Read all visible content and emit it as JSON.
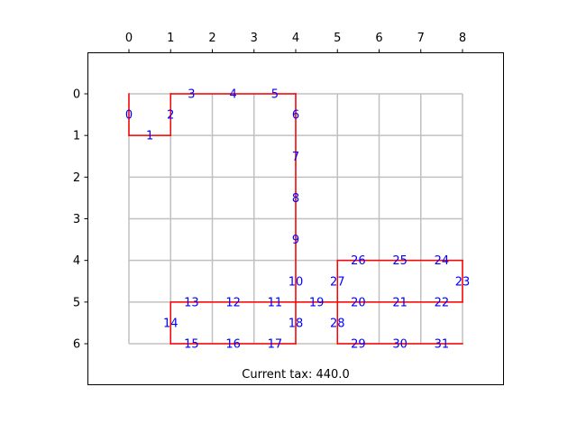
{
  "chart_data": {
    "type": "grid-path",
    "x_ticks": [
      "0",
      "1",
      "2",
      "3",
      "4",
      "5",
      "6",
      "7",
      "8"
    ],
    "y_ticks": [
      "0",
      "1",
      "2",
      "3",
      "4",
      "5",
      "6"
    ],
    "xlim": [
      -1,
      9
    ],
    "ylim": [
      7,
      -1
    ],
    "grid_size": {
      "cols": 9,
      "rows": 7
    },
    "x_axis_position": "top",
    "y_axis_inverted": true,
    "colors": {
      "grid": "#c0c0c0",
      "path": "#ff0000",
      "edge_label": "#0000ff",
      "frame": "#000000"
    },
    "path_segments": [
      [
        [
          0,
          0
        ],
        [
          0,
          1
        ]
      ],
      [
        [
          0,
          1
        ],
        [
          1,
          1
        ]
      ],
      [
        [
          1,
          1
        ],
        [
          1,
          0
        ]
      ],
      [
        [
          1,
          0
        ],
        [
          4,
          0
        ]
      ],
      [
        [
          4,
          0
        ],
        [
          4,
          6
        ]
      ],
      [
        [
          4,
          5
        ],
        [
          1,
          5
        ]
      ],
      [
        [
          1,
          5
        ],
        [
          1,
          6
        ]
      ],
      [
        [
          1,
          6
        ],
        [
          4,
          6
        ]
      ],
      [
        [
          4,
          5
        ],
        [
          8,
          5
        ]
      ],
      [
        [
          5,
          4
        ],
        [
          8,
          4
        ]
      ],
      [
        [
          8,
          4
        ],
        [
          8,
          5
        ]
      ],
      [
        [
          5,
          4
        ],
        [
          5,
          6
        ]
      ],
      [
        [
          5,
          6
        ],
        [
          8,
          6
        ]
      ]
    ],
    "edge_labels": [
      {
        "text": "0",
        "x": 0,
        "y": 0.5
      },
      {
        "text": "1",
        "x": 0.5,
        "y": 1
      },
      {
        "text": "2",
        "x": 1,
        "y": 0.5
      },
      {
        "text": "3",
        "x": 1.5,
        "y": 0
      },
      {
        "text": "4",
        "x": 2.5,
        "y": 0
      },
      {
        "text": "5",
        "x": 3.5,
        "y": 0
      },
      {
        "text": "6",
        "x": 4,
        "y": 0.5
      },
      {
        "text": "7",
        "x": 4,
        "y": 1.5
      },
      {
        "text": "8",
        "x": 4,
        "y": 2.5
      },
      {
        "text": "9",
        "x": 4,
        "y": 3.5
      },
      {
        "text": "10",
        "x": 4,
        "y": 4.5
      },
      {
        "text": "11",
        "x": 3.5,
        "y": 5
      },
      {
        "text": "12",
        "x": 2.5,
        "y": 5
      },
      {
        "text": "13",
        "x": 1.5,
        "y": 5
      },
      {
        "text": "14",
        "x": 1,
        "y": 5.5
      },
      {
        "text": "15",
        "x": 1.5,
        "y": 6
      },
      {
        "text": "16",
        "x": 2.5,
        "y": 6
      },
      {
        "text": "17",
        "x": 3.5,
        "y": 6
      },
      {
        "text": "18",
        "x": 4,
        "y": 5.5
      },
      {
        "text": "19",
        "x": 4.5,
        "y": 5
      },
      {
        "text": "20",
        "x": 5.5,
        "y": 5
      },
      {
        "text": "21",
        "x": 6.5,
        "y": 5
      },
      {
        "text": "22",
        "x": 7.5,
        "y": 5
      },
      {
        "text": "23",
        "x": 8,
        "y": 4.5
      },
      {
        "text": "24",
        "x": 7.5,
        "y": 4
      },
      {
        "text": "25",
        "x": 6.5,
        "y": 4
      },
      {
        "text": "26",
        "x": 5.5,
        "y": 4
      },
      {
        "text": "27",
        "x": 5,
        "y": 4.5
      },
      {
        "text": "28",
        "x": 5,
        "y": 5.5
      },
      {
        "text": "29",
        "x": 5.5,
        "y": 6
      },
      {
        "text": "30",
        "x": 6.5,
        "y": 6
      },
      {
        "text": "31",
        "x": 7.5,
        "y": 6
      }
    ]
  },
  "status": {
    "tax_text": "Current tax: 440.0"
  }
}
